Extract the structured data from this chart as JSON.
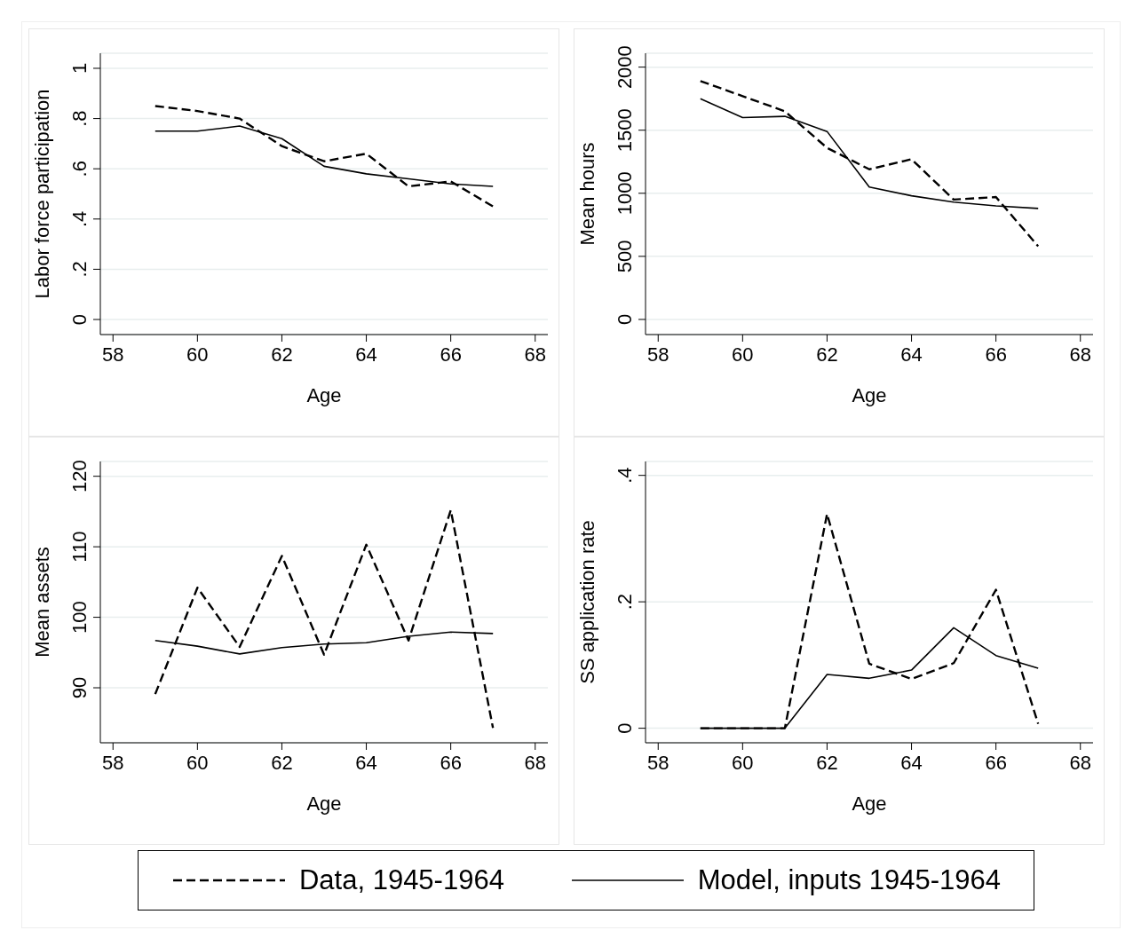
{
  "chart_data": [
    {
      "type": "line",
      "xlabel": "Age",
      "ylabel": "Labor force participation",
      "x": [
        59,
        60,
        61,
        62,
        63,
        64,
        65,
        66,
        67
      ],
      "xlim": [
        57.7,
        68.3
      ],
      "xticks": [
        58,
        60,
        62,
        64,
        66,
        68
      ],
      "ylim": [
        -0.06,
        1.06
      ],
      "yticks": [
        {
          "value": 0,
          "label": "0"
        },
        {
          "value": 0.2,
          "label": ".2"
        },
        {
          "value": 0.4,
          "label": ".4"
        },
        {
          "value": 0.6,
          "label": ".6"
        },
        {
          "value": 0.8,
          "label": ".8"
        },
        {
          "value": 1,
          "label": "1"
        }
      ],
      "grid": "y",
      "legend": "bottom",
      "series": [
        {
          "name": "Data, 1945-1964",
          "color": "#000000",
          "line_style": "dashed",
          "values": [
            0.85,
            0.83,
            0.8,
            0.69,
            0.63,
            0.66,
            0.53,
            0.55,
            0.45
          ]
        },
        {
          "name": "Model, inputs 1945-1964",
          "color": "#000000",
          "line_style": "solid",
          "values": [
            0.75,
            0.75,
            0.77,
            0.72,
            0.61,
            0.58,
            0.56,
            0.54,
            0.53
          ]
        }
      ]
    },
    {
      "type": "line",
      "xlabel": "Age",
      "ylabel": "Mean hours",
      "x": [
        59,
        60,
        61,
        62,
        63,
        64,
        65,
        66,
        67
      ],
      "xlim": [
        57.7,
        68.3
      ],
      "xticks": [
        58,
        60,
        62,
        64,
        66,
        68
      ],
      "ylim": [
        -120,
        2110
      ],
      "yticks": [
        0,
        500,
        1000,
        1500,
        2000
      ],
      "grid": "y",
      "series": [
        {
          "color": "#000000",
          "line_style": "dashed",
          "values": [
            1890,
            1770,
            1650,
            1360,
            1190,
            1270,
            950,
            970,
            580
          ]
        },
        {
          "color": "#000000",
          "line_style": "solid",
          "values": [
            1750,
            1600,
            1610,
            1490,
            1050,
            980,
            930,
            900,
            880
          ]
        }
      ]
    },
    {
      "type": "line",
      "xlabel": "Age",
      "ylabel": "Mean assets",
      "x": [
        59,
        60,
        61,
        62,
        63,
        64,
        65,
        66,
        67
      ],
      "xlim": [
        57.7,
        68.3
      ],
      "xticks": [
        58,
        60,
        62,
        64,
        66,
        68
      ],
      "ylim": [
        82.2,
        122.1
      ],
      "yticks": [
        90,
        100,
        110,
        120
      ],
      "grid": "y",
      "series": [
        {
          "color": "#000000",
          "line_style": "dashed",
          "values": [
            89.1,
            104.2,
            95.8,
            108.7,
            94.7,
            110.3,
            96.7,
            115.2,
            84.3
          ]
        },
        {
          "color": "#000000",
          "line_style": "solid",
          "values": [
            96.7,
            95.9,
            94.8,
            95.7,
            96.2,
            96.4,
            97.3,
            97.9,
            97.7
          ]
        }
      ]
    },
    {
      "type": "line",
      "xlabel": "Age",
      "ylabel": "SS application rate",
      "x": [
        59,
        60,
        61,
        62,
        63,
        64,
        65,
        66,
        67
      ],
      "xlim": [
        57.7,
        68.3
      ],
      "xticks": [
        58,
        60,
        62,
        64,
        66,
        68
      ],
      "ylim": [
        -0.023,
        0.422
      ],
      "yticks": [
        {
          "value": 0,
          "label": "0"
        },
        {
          "value": 0.2,
          "label": ".2"
        },
        {
          "value": 0.4,
          "label": ".4"
        }
      ],
      "grid": "y",
      "series": [
        {
          "color": "#000000",
          "line_style": "dashed",
          "values": [
            0,
            0,
            0,
            0.339,
            0.102,
            0.078,
            0.103,
            0.219,
            0.007
          ]
        },
        {
          "color": "#000000",
          "line_style": "solid",
          "values": [
            0,
            0,
            0,
            0.085,
            0.079,
            0.092,
            0.159,
            0.115,
            0.095
          ]
        }
      ]
    }
  ]
}
